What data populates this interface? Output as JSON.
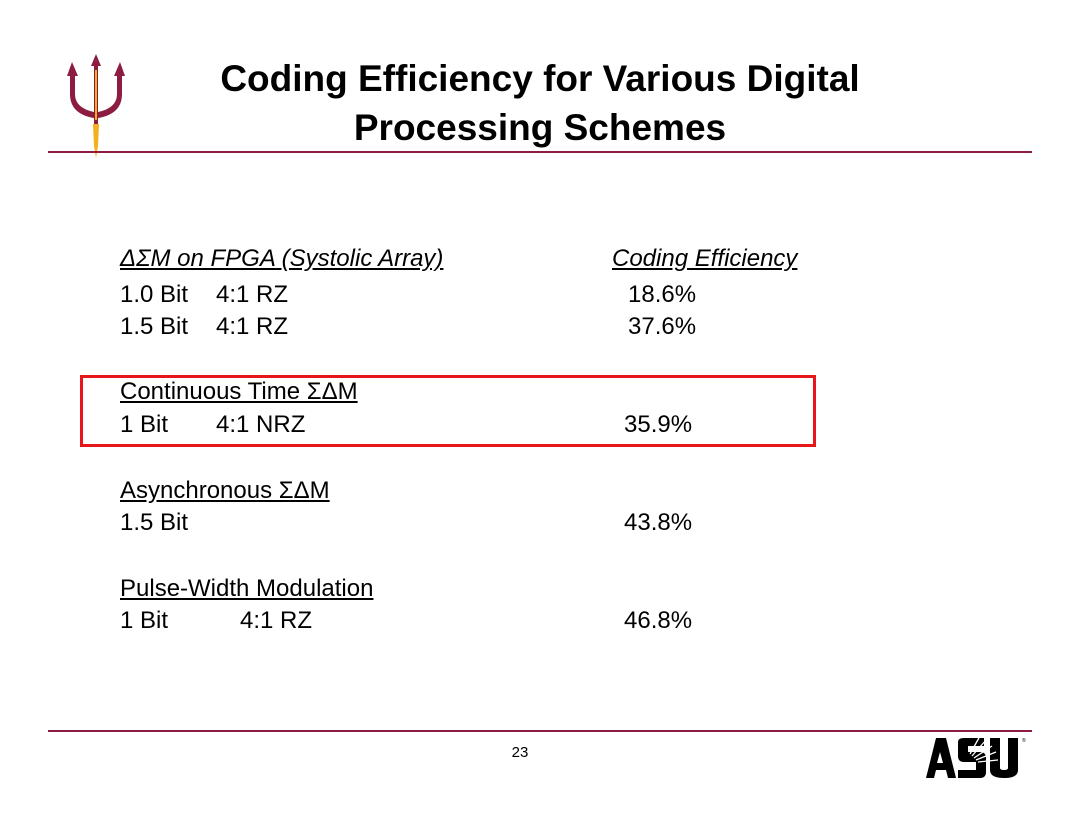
{
  "colors": {
    "maroon": "#8c1d40",
    "gold": "#f2b21f",
    "highlight_red": "#e8161b",
    "logo_black": "#000000"
  },
  "header": {
    "title_line1": "Coding Efficiency for Various Digital",
    "title_line2": "Processing Schemes",
    "logo_icon": "pitchfork-icon"
  },
  "table": {
    "section1": {
      "heading": "ΔΣM on FPGA (Systolic Array)",
      "column_header": "Coding Efficiency",
      "rows": [
        {
          "bits": "1.0 Bit",
          "ratio": "4:1 RZ",
          "efficiency": "18.6%"
        },
        {
          "bits": "1.5 Bit",
          "ratio": "4:1 RZ",
          "efficiency": "37.6%"
        }
      ]
    },
    "section2": {
      "heading": "Continuous Time ΣΔM",
      "rows": [
        {
          "bits": "1 Bit",
          "ratio": "4:1 NRZ",
          "efficiency": "35.9%"
        }
      ]
    },
    "section3": {
      "heading": "Asynchronous ΣΔM",
      "rows": [
        {
          "bits": "1.5 Bit",
          "ratio": "",
          "efficiency": "43.8%"
        }
      ]
    },
    "section4": {
      "heading": "Pulse-Width Modulation",
      "rows": [
        {
          "bits": "1 Bit",
          "ratio": "4:1 RZ",
          "efficiency": "46.8%"
        }
      ]
    }
  },
  "footer": {
    "page_number": "23",
    "logo_text": "ASU",
    "logo_icon": "asu-logo-icon"
  }
}
